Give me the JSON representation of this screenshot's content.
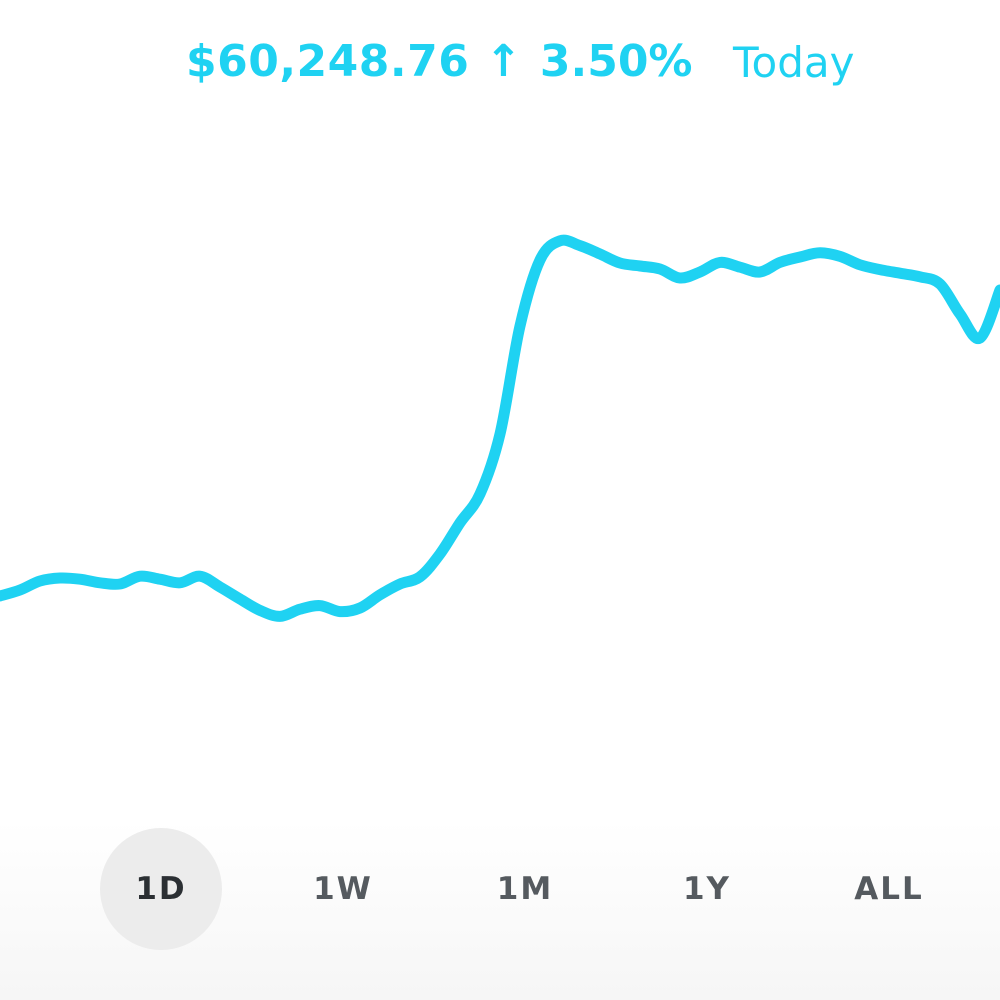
{
  "header": {
    "price": "$60,248.76",
    "change_arrow": "↑",
    "change_pct": "3.50%",
    "period": "Today"
  },
  "colors": {
    "accent": "#1fd2f2",
    "range_text": "#555a5f",
    "range_active_bg": "#ececec"
  },
  "chart_data": {
    "type": "line",
    "title": "",
    "xlabel": "",
    "ylabel": "",
    "grid": false,
    "legend": "none",
    "x": [
      0,
      2,
      4,
      6,
      8,
      10,
      12,
      14,
      16,
      18,
      20,
      22,
      24,
      26,
      28,
      30,
      32,
      34,
      36,
      38,
      40,
      42,
      44,
      46,
      48,
      50,
      52,
      54,
      56,
      58,
      60,
      62,
      64,
      66,
      68,
      70,
      72,
      74,
      76,
      78,
      80,
      82,
      84,
      86,
      88,
      90,
      92,
      94,
      96,
      98,
      100
    ],
    "series": [
      {
        "values": [
          34.0,
          35.0,
          36.5,
          37.0,
          36.8,
          36.2,
          36.0,
          37.3,
          36.8,
          36.2,
          37.3,
          35.5,
          33.5,
          31.6,
          30.6,
          31.8,
          32.4,
          31.4,
          32.0,
          34.2,
          36.0,
          37.2,
          41.0,
          46.2,
          51.0,
          61.0,
          79.0,
          90.0,
          93.2,
          92.4,
          91.0,
          89.5,
          89.0,
          88.5,
          87.0,
          88.0,
          89.6,
          88.8,
          88.0,
          89.6,
          90.5,
          91.2,
          90.6,
          89.2,
          88.4,
          87.8,
          87.2,
          86.0,
          81.0,
          77.0,
          85.0
        ]
      }
    ],
    "xlim": [
      0,
      100
    ],
    "ylim": [
      0,
      100
    ]
  },
  "ranges": [
    {
      "label": "1D",
      "active": true
    },
    {
      "label": "1W",
      "active": false
    },
    {
      "label": "1M",
      "active": false
    },
    {
      "label": "1Y",
      "active": false
    },
    {
      "label": "ALL",
      "active": false
    }
  ]
}
